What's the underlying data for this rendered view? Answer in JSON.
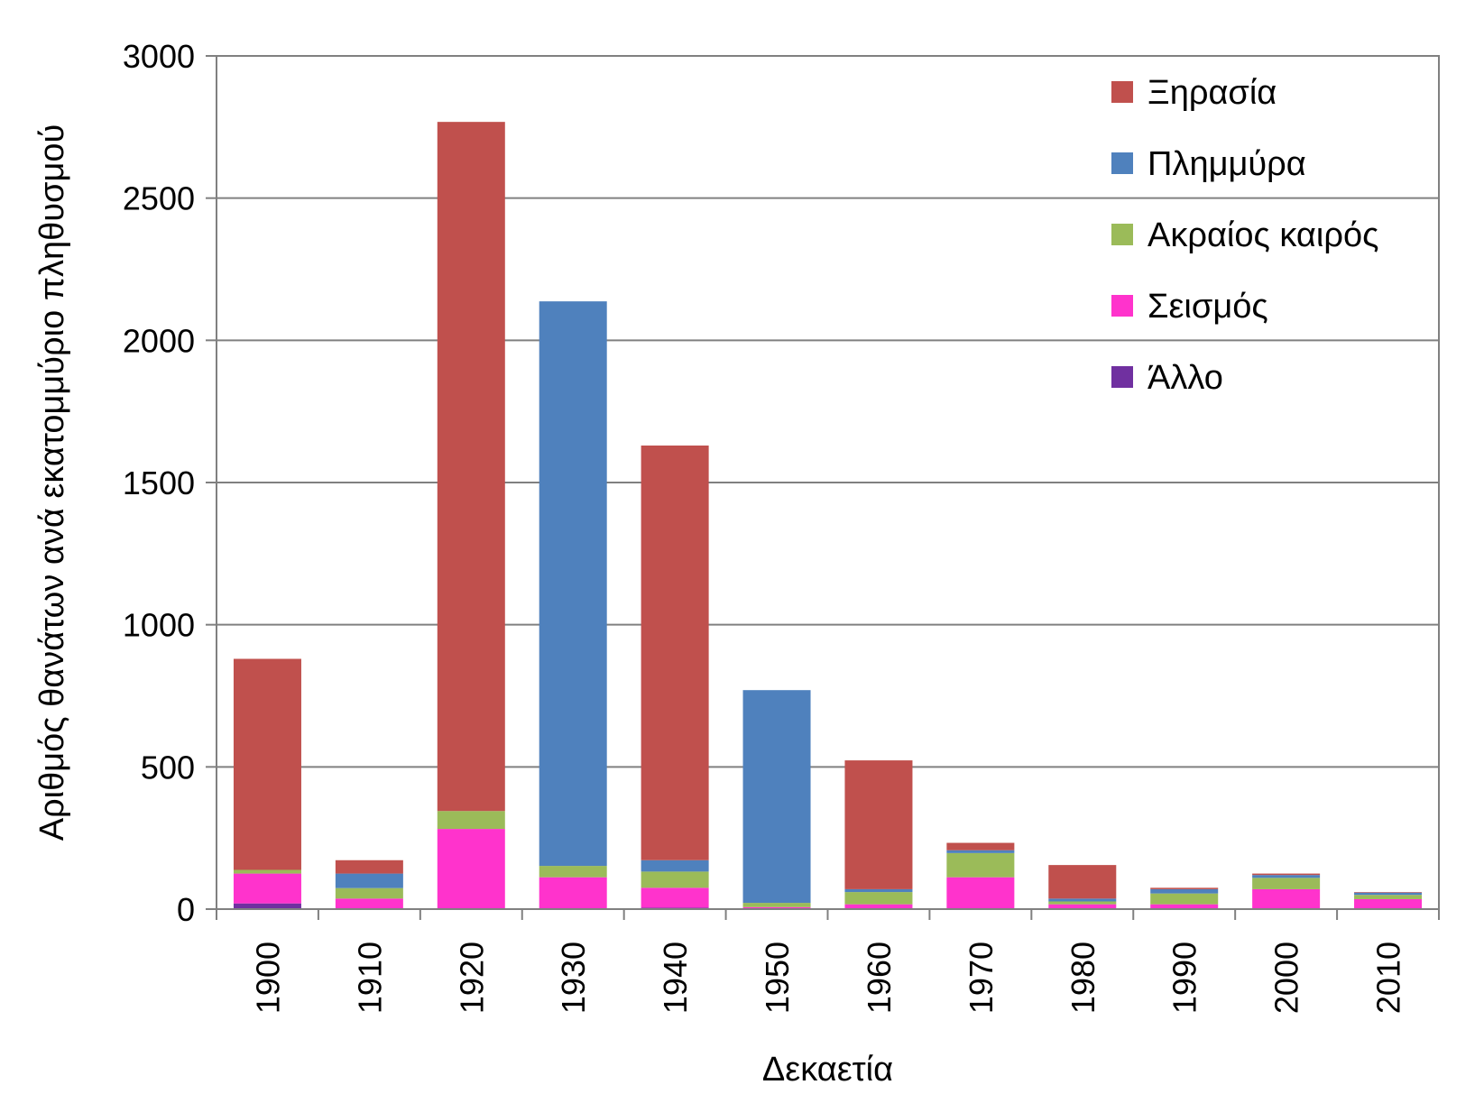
{
  "chart_data": {
    "type": "bar",
    "stacked": true,
    "title": "",
    "xlabel": "Δεκαετία",
    "ylabel": "Αριθμός θανάτων ανά εκατομμύριο πληθυσμού",
    "ylim": [
      0,
      3000
    ],
    "yticks": [
      0,
      500,
      1000,
      1500,
      2000,
      2500,
      3000
    ],
    "grid": true,
    "legend_position": "top-right",
    "categories": [
      "1900",
      "1910",
      "1920",
      "1930",
      "1940",
      "1950",
      "1960",
      "1970",
      "1980",
      "1990",
      "2000",
      "2010"
    ],
    "series": [
      {
        "name": "Άλλο",
        "color": "#7030A0",
        "values": [
          20,
          2,
          2,
          2,
          5,
          2,
          2,
          2,
          2,
          2,
          2,
          2
        ]
      },
      {
        "name": "Σεισμός",
        "color": "#FF33CC",
        "values": [
          105,
          35,
          280,
          110,
          70,
          5,
          15,
          110,
          15,
          15,
          68,
          33
        ]
      },
      {
        "name": "Ακραίος καιρός",
        "color": "#9BBB59",
        "values": [
          13,
          37,
          63,
          40,
          57,
          15,
          43,
          85,
          10,
          38,
          40,
          15
        ]
      },
      {
        "name": "Πλημμύρα",
        "color": "#4F81BD",
        "values": [
          0,
          51,
          0,
          1985,
          40,
          748,
          10,
          10,
          10,
          15,
          10,
          8
        ]
      },
      {
        "name": "Ξηρασία",
        "color": "#C0504D",
        "values": [
          742,
          47,
          2423,
          0,
          1458,
          0,
          453,
          26,
          118,
          5,
          5,
          2
        ]
      }
    ]
  }
}
